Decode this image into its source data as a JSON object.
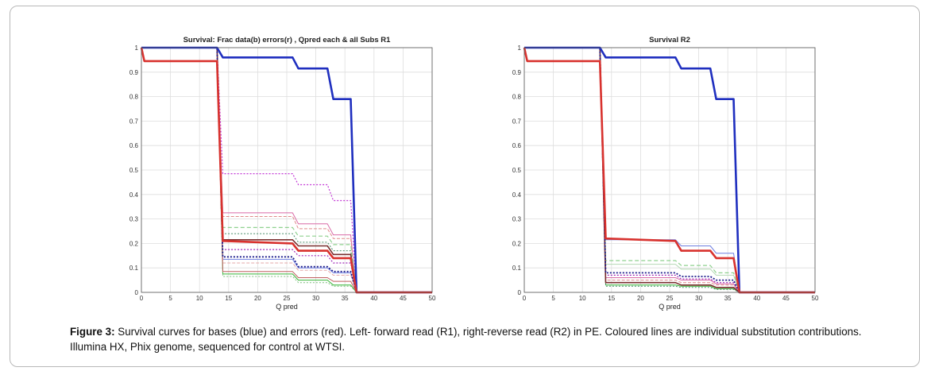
{
  "figure": {
    "caption_label": "Figure 3:",
    "caption_text": " Survival curves for bases (blue) and errors (red). Left- forward read (R1), right-reverse read (R2) in PE. Coloured lines are individual substitution contributions. Illumina HX, Phix genome, sequenced for control at WTSI."
  },
  "chart_data": [
    {
      "type": "line",
      "title": "Survival: Frac data(b) errors(r) , Qpred each & all Subs R1",
      "xlabel": "Q pred",
      "ylabel": "",
      "xlim": [
        0,
        50
      ],
      "ylim": [
        0,
        1
      ],
      "xticks": [
        "0",
        "5",
        "10",
        "15",
        "20",
        "25",
        "30",
        "35",
        "40",
        "45",
        "50"
      ],
      "yticks": [
        "0",
        "0.1",
        "0.2",
        "0.3",
        "0.4",
        "0.5",
        "0.6",
        "0.7",
        "0.8",
        "0.9",
        "1"
      ],
      "grid": true,
      "series": [
        {
          "color": "#1f2fbf",
          "width": 2.6,
          "dash": "",
          "x": [
            0,
            13,
            14,
            26,
            27,
            32,
            33,
            36,
            37,
            50
          ],
          "y": [
            1,
            1,
            0.96,
            0.96,
            0.915,
            0.915,
            0.79,
            0.79,
            0,
            0
          ]
        },
        {
          "color": "#d8322e",
          "width": 2.6,
          "dash": "",
          "x": [
            0,
            0.5,
            13,
            14,
            26,
            27,
            32,
            33,
            36,
            37,
            50
          ],
          "y": [
            1,
            0.945,
            0.945,
            0.21,
            0.2,
            0.17,
            0.17,
            0.14,
            0.14,
            0,
            0
          ]
        },
        {
          "color": "#c43bd6",
          "width": 1.2,
          "dash": "2,2",
          "x": [
            0,
            13,
            14,
            26,
            27,
            32,
            33,
            36,
            37,
            50
          ],
          "y": [
            1,
            1,
            0.485,
            0.485,
            0.44,
            0.44,
            0.375,
            0.375,
            0,
            0
          ]
        },
        {
          "color": "#d96aa6",
          "width": 1.0,
          "dash": "",
          "x": [
            0,
            13,
            14,
            26,
            27,
            32,
            33,
            36,
            37,
            50
          ],
          "y": [
            1,
            1,
            0.325,
            0.325,
            0.28,
            0.28,
            0.235,
            0.235,
            0,
            0
          ]
        },
        {
          "color": "#e08a8a",
          "width": 1.0,
          "dash": "4,2",
          "x": [
            0,
            13,
            14,
            26,
            27,
            32,
            33,
            36,
            37,
            50
          ],
          "y": [
            1,
            1,
            0.31,
            0.31,
            0.26,
            0.26,
            0.22,
            0.22,
            0,
            0
          ]
        },
        {
          "color": "#8fd18f",
          "width": 1.2,
          "dash": "5,3",
          "x": [
            0,
            13,
            14,
            26,
            27,
            32,
            33,
            36,
            37,
            50
          ],
          "y": [
            1,
            1,
            0.265,
            0.265,
            0.23,
            0.23,
            0.195,
            0.195,
            0,
            0
          ]
        },
        {
          "color": "#4a8f6a",
          "width": 1.0,
          "dash": "2,2",
          "x": [
            0,
            13,
            14,
            26,
            27,
            32,
            33,
            36,
            37,
            50
          ],
          "y": [
            1,
            1,
            0.24,
            0.24,
            0.205,
            0.205,
            0.17,
            0.17,
            0,
            0
          ]
        },
        {
          "color": "#7a3030",
          "width": 1.6,
          "dash": "",
          "x": [
            0,
            13,
            14,
            26,
            27,
            32,
            33,
            36,
            37,
            50
          ],
          "y": [
            1,
            1,
            0.215,
            0.215,
            0.19,
            0.19,
            0.155,
            0.155,
            0,
            0
          ]
        },
        {
          "color": "#a02ab8",
          "width": 1.2,
          "dash": "2,2",
          "x": [
            0,
            13,
            14,
            26,
            27,
            32,
            33,
            36,
            37,
            50
          ],
          "y": [
            1,
            1,
            0.175,
            0.175,
            0.15,
            0.15,
            0.12,
            0.12,
            0,
            0
          ]
        },
        {
          "color": "#1c1c8c",
          "width": 1.8,
          "dash": "2,2",
          "x": [
            0,
            13,
            14,
            26,
            27,
            32,
            33,
            36,
            37,
            50
          ],
          "y": [
            1,
            1,
            0.145,
            0.145,
            0.105,
            0.105,
            0.085,
            0.085,
            0,
            0
          ]
        },
        {
          "color": "#6f7fe0",
          "width": 1.0,
          "dash": "",
          "x": [
            0,
            13,
            14,
            26,
            27,
            32,
            33,
            36,
            37,
            50
          ],
          "y": [
            1,
            1,
            0.135,
            0.135,
            0.1,
            0.1,
            0.08,
            0.08,
            0,
            0
          ]
        },
        {
          "color": "#e5a8a8",
          "width": 1.0,
          "dash": "4,2",
          "x": [
            0,
            13,
            14,
            26,
            27,
            32,
            33,
            36,
            37,
            50
          ],
          "y": [
            1,
            1,
            0.12,
            0.12,
            0.09,
            0.09,
            0.07,
            0.07,
            0,
            0
          ]
        },
        {
          "color": "#37b537",
          "width": 1.0,
          "dash": "",
          "x": [
            0,
            13,
            14,
            26,
            27,
            32,
            33,
            36,
            37,
            50
          ],
          "y": [
            1,
            1,
            0.075,
            0.075,
            0.05,
            0.05,
            0.03,
            0.03,
            0,
            0
          ]
        },
        {
          "color": "#7dbf7d",
          "width": 1.0,
          "dash": "2,2",
          "x": [
            0,
            13,
            14,
            26,
            27,
            32,
            33,
            36,
            37,
            50
          ],
          "y": [
            1,
            1,
            0.065,
            0.065,
            0.04,
            0.04,
            0.025,
            0.025,
            0,
            0
          ]
        },
        {
          "color": "#c06060",
          "width": 1.0,
          "dash": "",
          "x": [
            0,
            13,
            14,
            26,
            27,
            32,
            33,
            36,
            37,
            50
          ],
          "y": [
            1,
            1,
            0.085,
            0.085,
            0.06,
            0.06,
            0.045,
            0.045,
            0,
            0
          ]
        }
      ]
    },
    {
      "type": "line",
      "title": "Survival R2",
      "xlabel": "Q pred",
      "ylabel": "",
      "xlim": [
        0,
        50
      ],
      "ylim": [
        0,
        1
      ],
      "xticks": [
        "0",
        "5",
        "10",
        "15",
        "20",
        "25",
        "30",
        "35",
        "40",
        "45",
        "50"
      ],
      "yticks": [
        "0",
        "0.1",
        "0.2",
        "0.3",
        "0.4",
        "0.5",
        "0.6",
        "0.7",
        "0.8",
        "0.9",
        "1"
      ],
      "grid": true,
      "series": [
        {
          "color": "#1f2fbf",
          "width": 2.6,
          "dash": "",
          "x": [
            0,
            13,
            14,
            26,
            27,
            32,
            33,
            36,
            37,
            50
          ],
          "y": [
            1,
            1,
            0.96,
            0.96,
            0.915,
            0.915,
            0.79,
            0.79,
            0,
            0
          ]
        },
        {
          "color": "#d8322e",
          "width": 2.6,
          "dash": "",
          "x": [
            0,
            0.5,
            13,
            14,
            26,
            27,
            32,
            33,
            36,
            37,
            50
          ],
          "y": [
            1,
            0.945,
            0.945,
            0.22,
            0.21,
            0.17,
            0.17,
            0.14,
            0.14,
            0,
            0
          ]
        },
        {
          "color": "#6f7fe0",
          "width": 1.0,
          "dash": "",
          "x": [
            0,
            13,
            14,
            26,
            27,
            32,
            33,
            36,
            37,
            50
          ],
          "y": [
            1,
            1,
            0.215,
            0.215,
            0.19,
            0.19,
            0.16,
            0.16,
            0,
            0
          ]
        },
        {
          "color": "#8fd18f",
          "width": 1.2,
          "dash": "5,3",
          "x": [
            0,
            13,
            14,
            26,
            27,
            32,
            33,
            36,
            37,
            50
          ],
          "y": [
            1,
            1,
            0.13,
            0.13,
            0.11,
            0.11,
            0.08,
            0.08,
            0,
            0
          ]
        },
        {
          "color": "#b5d9b5",
          "width": 1.0,
          "dash": "",
          "x": [
            0,
            13,
            14,
            26,
            27,
            32,
            33,
            36,
            37,
            50
          ],
          "y": [
            1,
            1,
            0.115,
            0.115,
            0.095,
            0.095,
            0.07,
            0.07,
            0,
            0
          ]
        },
        {
          "color": "#1c1c8c",
          "width": 1.8,
          "dash": "2,2",
          "x": [
            0,
            13,
            14,
            26,
            27,
            32,
            33,
            36,
            37,
            50
          ],
          "y": [
            1,
            1,
            0.08,
            0.08,
            0.065,
            0.065,
            0.05,
            0.05,
            0,
            0
          ]
        },
        {
          "color": "#a02ab8",
          "width": 1.2,
          "dash": "2,2",
          "x": [
            0,
            13,
            14,
            26,
            27,
            32,
            33,
            36,
            37,
            50
          ],
          "y": [
            1,
            1,
            0.07,
            0.07,
            0.055,
            0.055,
            0.04,
            0.04,
            0,
            0
          ]
        },
        {
          "color": "#d96aa6",
          "width": 1.0,
          "dash": "",
          "x": [
            0,
            13,
            14,
            26,
            27,
            32,
            33,
            36,
            37,
            50
          ],
          "y": [
            1,
            1,
            0.06,
            0.06,
            0.05,
            0.05,
            0.035,
            0.035,
            0,
            0
          ]
        },
        {
          "color": "#e08a8a",
          "width": 1.0,
          "dash": "4,2",
          "x": [
            0,
            13,
            14,
            26,
            27,
            32,
            33,
            36,
            37,
            50
          ],
          "y": [
            1,
            1,
            0.05,
            0.05,
            0.04,
            0.04,
            0.03,
            0.03,
            0,
            0
          ]
        },
        {
          "color": "#7a3030",
          "width": 1.6,
          "dash": "",
          "x": [
            0,
            13,
            14,
            26,
            27,
            32,
            33,
            36,
            37,
            50
          ],
          "y": [
            1,
            1,
            0.04,
            0.04,
            0.03,
            0.03,
            0.02,
            0.02,
            0,
            0
          ]
        },
        {
          "color": "#37b537",
          "width": 1.0,
          "dash": "",
          "x": [
            0,
            13,
            14,
            26,
            27,
            32,
            33,
            36,
            37,
            50
          ],
          "y": [
            1,
            1,
            0.03,
            0.03,
            0.025,
            0.025,
            0.015,
            0.015,
            0,
            0
          ]
        },
        {
          "color": "#4a8f6a",
          "width": 1.0,
          "dash": "2,2",
          "x": [
            0,
            13,
            14,
            26,
            27,
            32,
            33,
            36,
            37,
            50
          ],
          "y": [
            1,
            1,
            0.025,
            0.025,
            0.02,
            0.02,
            0.012,
            0.012,
            0,
            0
          ]
        }
      ]
    }
  ]
}
